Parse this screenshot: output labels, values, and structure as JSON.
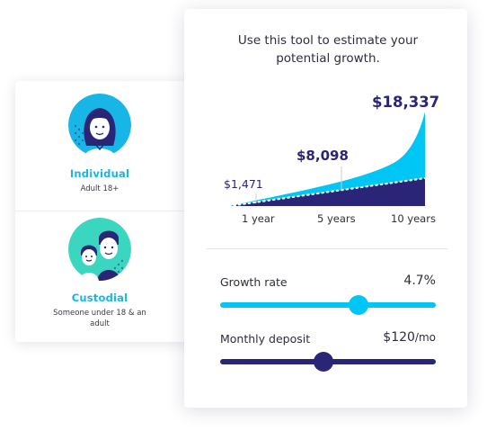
{
  "accounts": {
    "individual": {
      "label": "Individual",
      "subtitle": "Adult 18+"
    },
    "custodial": {
      "label": "Custodial",
      "subtitle": "Someone under 18 & an adult"
    }
  },
  "tool": {
    "intro": "Use this tool to estimate your potential growth.",
    "projection": {
      "values": [
        "$1,471",
        "$8,098",
        "$18,337"
      ],
      "x_labels": [
        "1 year",
        "5 years",
        "10 years"
      ]
    },
    "growth_rate": {
      "label": "Growth rate",
      "value": "4.7%",
      "level": 0.64
    },
    "monthly_deposit": {
      "label": "Monthly deposit",
      "value": "$120",
      "unit": "/mo",
      "level": 0.48
    }
  },
  "colors": {
    "cyan": "#17b6e6",
    "navy": "#2a2577",
    "bright_cyan": "#00c6f5"
  }
}
